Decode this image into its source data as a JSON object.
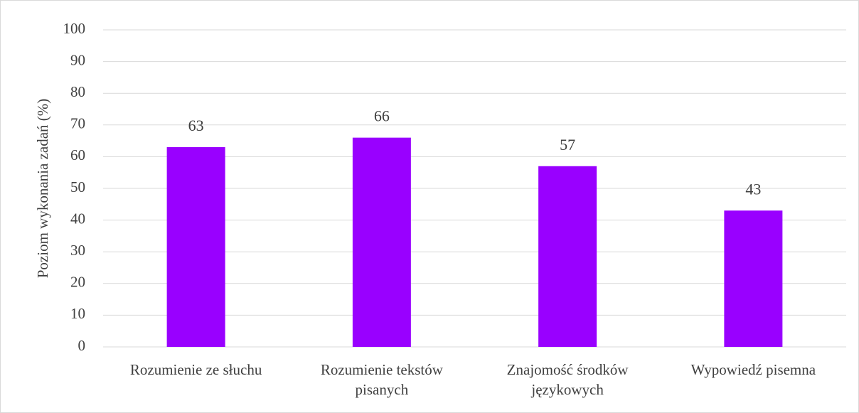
{
  "chart_data": {
    "type": "bar",
    "y_label": "Poziom wykonania zadań (%)",
    "categories": [
      "Rozumienie ze słuchu",
      "Rozumienie tekstów pisanych",
      "Znajomość środków językowych",
      "Wypowiedź pisemna"
    ],
    "values": [
      63,
      66,
      57,
      43
    ],
    "color": "#9900ff",
    "ylim": [
      0,
      100
    ],
    "yticks": [
      0,
      10,
      20,
      30,
      40,
      50,
      60,
      70,
      80,
      90,
      100
    ],
    "grid": true
  }
}
